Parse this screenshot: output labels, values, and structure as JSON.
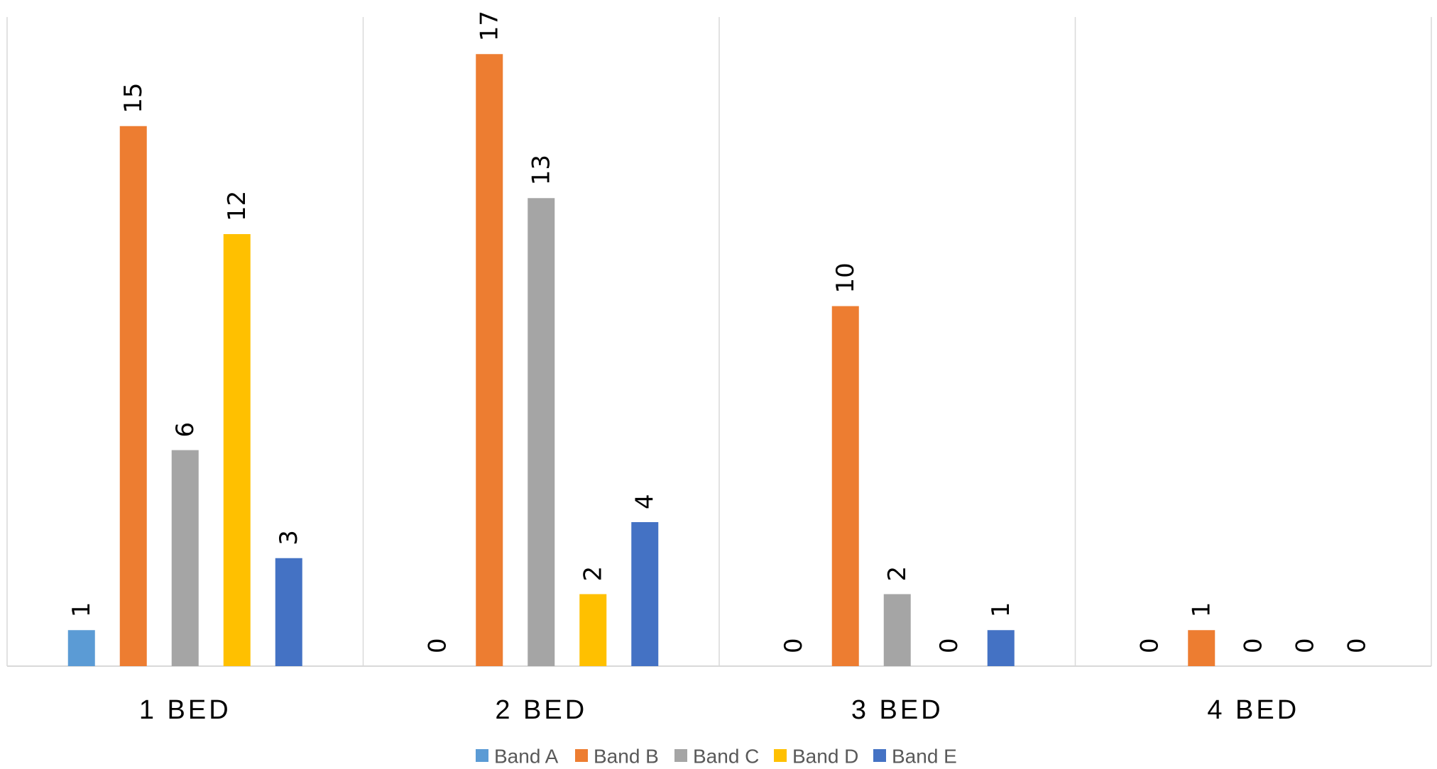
{
  "chart_data": {
    "type": "bar",
    "categories": [
      "1 BED",
      "2 BED",
      "3 BED",
      "4 BED"
    ],
    "series": [
      {
        "name": "Band A",
        "color": "#5B9BD5",
        "values": [
          1,
          0,
          0,
          0
        ]
      },
      {
        "name": "Band B",
        "color": "#ED7D31",
        "values": [
          15,
          17,
          10,
          1
        ]
      },
      {
        "name": "Band C",
        "color": "#A5A5A5",
        "values": [
          6,
          13,
          2,
          0
        ]
      },
      {
        "name": "Band D",
        "color": "#FFC000",
        "values": [
          12,
          2,
          0,
          0
        ]
      },
      {
        "name": "Band E",
        "color": "#4472C4",
        "values": [
          3,
          4,
          1,
          0
        ]
      }
    ],
    "ylim": [
      0,
      18
    ],
    "grid": false,
    "legend": "bottom",
    "title": "",
    "xlabel": "",
    "ylabel": ""
  }
}
